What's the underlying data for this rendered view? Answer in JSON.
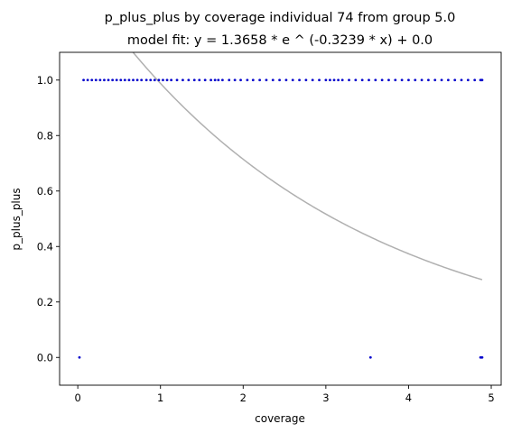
{
  "chart_data": {
    "type": "scatter",
    "title": "p_plus_plus by coverage individual 74 from group 5.0",
    "subtitle": "model fit: y = 1.3658 * e ^ (-0.3239 * x) + 0.0",
    "xlabel": "coverage",
    "ylabel": "p_plus_plus",
    "xlim": [
      -0.22,
      5.12
    ],
    "ylim": [
      -0.1,
      1.1
    ],
    "xticks": [
      "0",
      "1",
      "2",
      "3",
      "4",
      "5"
    ],
    "yticks": [
      "0.0",
      "0.2",
      "0.4",
      "0.6",
      "0.8",
      "1.0"
    ],
    "grid": false,
    "legend": "none",
    "colors": {
      "points": "#0000cc",
      "fit": "#b0b0b0"
    },
    "series": [
      {
        "x": [
          0.07,
          0.12,
          0.17,
          0.22,
          0.27,
          0.32,
          0.37,
          0.42,
          0.47,
          0.52,
          0.57,
          0.62,
          0.67,
          0.72,
          0.77,
          0.83,
          0.88,
          0.93,
          0.98,
          1.03,
          1.08,
          1.13,
          1.2,
          1.27,
          1.34,
          1.41,
          1.47,
          1.54,
          1.61,
          1.66,
          1.7,
          1.75,
          1.83,
          1.9,
          1.97,
          2.05,
          2.12,
          2.2,
          2.28,
          2.36,
          2.44,
          2.52,
          2.6,
          2.68,
          2.76,
          2.84,
          2.92,
          3.0,
          3.05,
          3.1,
          3.15,
          3.2,
          3.28,
          3.36,
          3.44,
          3.52,
          3.6,
          3.68,
          3.76,
          3.84,
          3.92,
          4.0,
          4.08,
          4.16,
          4.24,
          4.32,
          4.4,
          4.48,
          4.56,
          4.64,
          4.72,
          4.8,
          4.87,
          4.88,
          4.89
        ],
        "y": [
          1,
          1,
          1,
          1,
          1,
          1,
          1,
          1,
          1,
          1,
          1,
          1,
          1,
          1,
          1,
          1,
          1,
          1,
          1,
          1,
          1,
          1,
          1,
          1,
          1,
          1,
          1,
          1,
          1,
          1,
          1,
          1,
          1,
          1,
          1,
          1,
          1,
          1,
          1,
          1,
          1,
          1,
          1,
          1,
          1,
          1,
          1,
          1,
          1,
          1,
          1,
          1,
          1,
          1,
          1,
          1,
          1,
          1,
          1,
          1,
          1,
          1,
          1,
          1,
          1,
          1,
          1,
          1,
          1,
          1,
          1,
          1,
          1,
          1,
          1
        ]
      },
      {
        "x": [
          0.02,
          3.54,
          4.87,
          4.88,
          4.89
        ],
        "y": [
          0,
          0,
          0,
          0,
          0
        ]
      },
      {
        "type": "line",
        "fit": {
          "a": 1.3658,
          "b": -0.3239,
          "c": 0.0
        },
        "x_range": [
          0.02,
          4.89
        ]
      }
    ]
  }
}
